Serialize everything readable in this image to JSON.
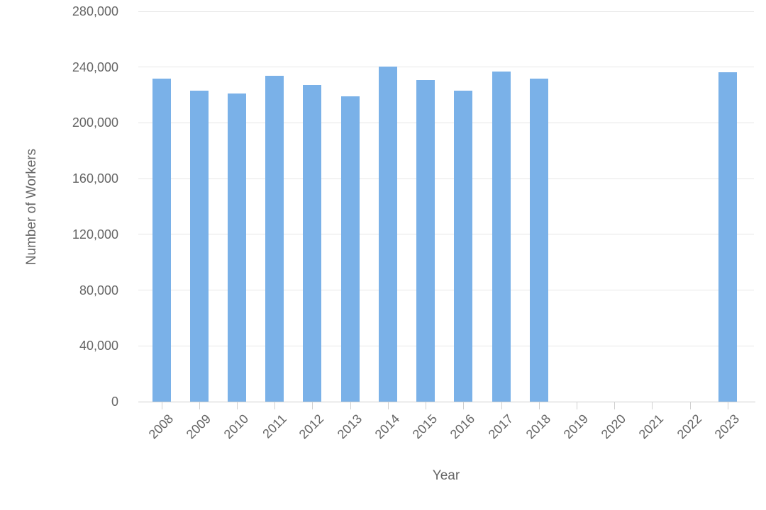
{
  "chart_data": {
    "type": "bar",
    "xlabel": "Year",
    "ylabel": "Number of Workers",
    "categories": [
      "2008",
      "2009",
      "2010",
      "2011",
      "2012",
      "2013",
      "2014",
      "2015",
      "2016",
      "2017",
      "2018",
      "2019",
      "2020",
      "2021",
      "2022",
      "2023"
    ],
    "values": [
      231500,
      223000,
      221000,
      234000,
      227000,
      219000,
      240500,
      230500,
      223000,
      237000,
      231500,
      null,
      null,
      null,
      null,
      236500
    ],
    "ylim": [
      0,
      280000
    ],
    "ytick_step": 40000,
    "ytick_labels": [
      "0",
      "40,000",
      "80,000",
      "120,000",
      "160,000",
      "200,000",
      "240,000",
      "280,000"
    ],
    "legend": "none",
    "grid": true,
    "colors": {
      "bar": "#7ab1e8",
      "gridline": "#e7e7e7",
      "axis_line": "#cfcfcf",
      "text": "#666666",
      "background": "#ffffff"
    }
  }
}
